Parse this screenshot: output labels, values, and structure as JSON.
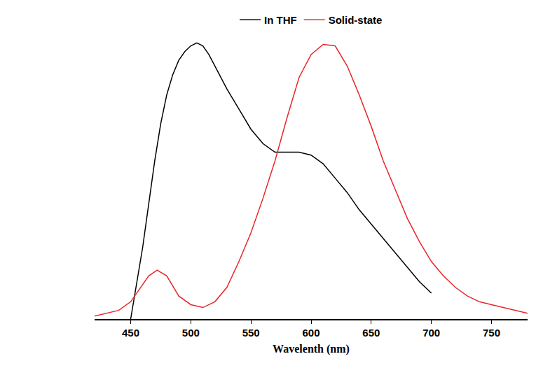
{
  "chart_data": {
    "type": "line",
    "x_label": "Wavelenth (nm)",
    "xlim": [
      420,
      780
    ],
    "xticks": [
      450,
      500,
      550,
      600,
      650,
      700,
      750
    ],
    "ylim": [
      0,
      1
    ],
    "tick_labels": "x",
    "grid": false,
    "legend": "top",
    "series": [
      {
        "name": "In THF",
        "color": "#000000",
        "x": [
          450,
          455,
          460,
          465,
          470,
          475,
          480,
          485,
          490,
          495,
          500,
          505,
          510,
          515,
          520,
          530,
          540,
          550,
          560,
          570,
          580,
          590,
          600,
          610,
          620,
          630,
          640,
          650,
          660,
          670,
          680,
          690,
          700
        ],
        "values": [
          0.0,
          0.12,
          0.25,
          0.4,
          0.55,
          0.68,
          0.78,
          0.85,
          0.9,
          0.93,
          0.95,
          0.96,
          0.95,
          0.92,
          0.88,
          0.8,
          0.73,
          0.66,
          0.61,
          0.58,
          0.58,
          0.58,
          0.57,
          0.54,
          0.49,
          0.44,
          0.38,
          0.33,
          0.28,
          0.23,
          0.18,
          0.13,
          0.09
        ]
      },
      {
        "name": "Solid-state",
        "color": "#e8262a",
        "x": [
          420,
          430,
          440,
          450,
          460,
          465,
          472,
          480,
          490,
          500,
          510,
          520,
          530,
          540,
          550,
          560,
          570,
          580,
          590,
          600,
          610,
          620,
          630,
          640,
          650,
          660,
          670,
          680,
          690,
          700,
          710,
          720,
          730,
          740,
          750,
          760,
          770,
          780
        ],
        "values": [
          0.01,
          0.02,
          0.03,
          0.06,
          0.12,
          0.15,
          0.17,
          0.15,
          0.08,
          0.05,
          0.04,
          0.06,
          0.11,
          0.2,
          0.3,
          0.42,
          0.55,
          0.7,
          0.84,
          0.92,
          0.955,
          0.95,
          0.88,
          0.78,
          0.67,
          0.55,
          0.45,
          0.35,
          0.27,
          0.2,
          0.15,
          0.11,
          0.08,
          0.06,
          0.05,
          0.04,
          0.03,
          0.02
        ]
      }
    ]
  }
}
